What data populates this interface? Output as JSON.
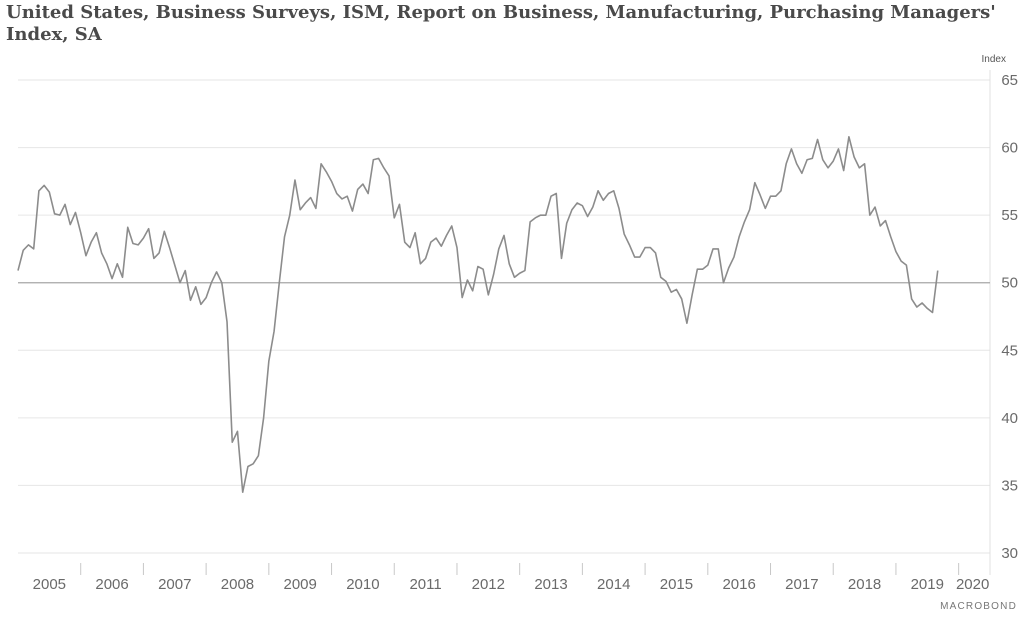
{
  "title": "United States, Business Surveys, ISM, Report on Business, Manufacturing, Purchasing Managers' Index, SA",
  "branding": "MACROBOND",
  "chart_data": {
    "type": "line",
    "title": "United States, Business Surveys, ISM, Report on Business, Manufacturing, Purchasing Managers' Index, SA",
    "y_unit": "Index",
    "ylim": [
      30,
      65
    ],
    "y_ticks": [
      30,
      35,
      40,
      45,
      50,
      55,
      60,
      65
    ],
    "xlim": [
      "2005-01",
      "2020-07"
    ],
    "x_ticks": [
      "2005",
      "2006",
      "2007",
      "2008",
      "2009",
      "2010",
      "2011",
      "2012",
      "2013",
      "2014",
      "2015",
      "2016",
      "2017",
      "2018",
      "2019",
      "2020"
    ],
    "reference_line": 50,
    "grid": true,
    "colors": {
      "series": "#8c8c8c",
      "reference": "#a8a8a8",
      "grid": "#e6e6e6"
    },
    "series": [
      {
        "x_start": "2005-01",
        "frequency": "monthly",
        "values": [
          50.9,
          52.4,
          52.8,
          52.5,
          56.8,
          57.2,
          56.7,
          55.1,
          55.0,
          55.8,
          54.3,
          55.2,
          53.7,
          52.0,
          53.0,
          53.7,
          52.2,
          51.4,
          50.3,
          51.4,
          50.4,
          54.1,
          52.9,
          52.8,
          53.3,
          54.0,
          51.8,
          52.2,
          53.8,
          52.6,
          51.3,
          50.0,
          50.9,
          48.7,
          49.7,
          48.4,
          48.9,
          50.0,
          50.8,
          50.0,
          47.1,
          38.2,
          39.0,
          34.5,
          36.4,
          36.6,
          37.2,
          40.0,
          44.2,
          46.4,
          50.0,
          53.4,
          55.0,
          57.6,
          55.4,
          55.9,
          56.3,
          55.5,
          58.8,
          58.2,
          57.5,
          56.6,
          56.2,
          56.4,
          55.3,
          56.9,
          57.3,
          56.6,
          59.1,
          59.2,
          58.5,
          57.9,
          54.8,
          55.8,
          53.0,
          52.6,
          53.7,
          51.4,
          51.8,
          53.0,
          53.3,
          52.7,
          53.5,
          54.2,
          52.6,
          48.9,
          50.2,
          49.4,
          51.2,
          51.0,
          49.1,
          50.6,
          52.5,
          53.5,
          51.4,
          50.4,
          50.7,
          50.9,
          54.5,
          54.8,
          55.0,
          55.0,
          56.4,
          56.6,
          51.8,
          54.4,
          55.4,
          55.9,
          55.7,
          54.9,
          55.6,
          56.8,
          56.1,
          56.6,
          56.8,
          55.5,
          53.6,
          52.8,
          51.9,
          51.9,
          52.6,
          52.6,
          52.2,
          50.4,
          50.1,
          49.3,
          49.5,
          48.8,
          47.0,
          49.1,
          51.0,
          51.0,
          51.3,
          52.5,
          52.5,
          50.0,
          51.1,
          51.9,
          53.4,
          54.5,
          55.4,
          57.4,
          56.5,
          55.5,
          56.4,
          56.4,
          56.8,
          58.8,
          59.9,
          58.8,
          58.1,
          59.1,
          59.2,
          60.6,
          59.1,
          58.5,
          59.0,
          59.9,
          58.3,
          60.8,
          59.3,
          58.5,
          58.8,
          55.0,
          55.6,
          54.2,
          54.6,
          53.4,
          52.3,
          51.6,
          51.3,
          48.8,
          48.2,
          48.5,
          48.1,
          47.8,
          50.9
        ]
      }
    ]
  }
}
